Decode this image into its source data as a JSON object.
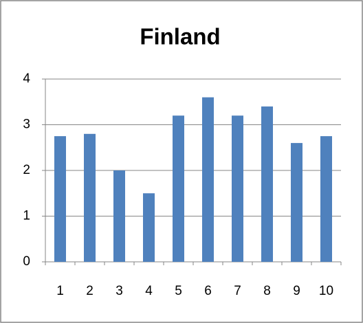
{
  "chart_data": {
    "type": "bar",
    "title": "Finland",
    "categories": [
      "1",
      "2",
      "3",
      "4",
      "5",
      "6",
      "7",
      "8",
      "9",
      "10"
    ],
    "values": [
      2.75,
      2.8,
      2.0,
      1.5,
      3.2,
      3.6,
      3.2,
      3.4,
      2.6,
      2.75
    ],
    "color": "#4f81bd",
    "ylim": [
      0,
      4
    ],
    "yticks": [
      0,
      1,
      2,
      3,
      4
    ],
    "grid": true
  }
}
